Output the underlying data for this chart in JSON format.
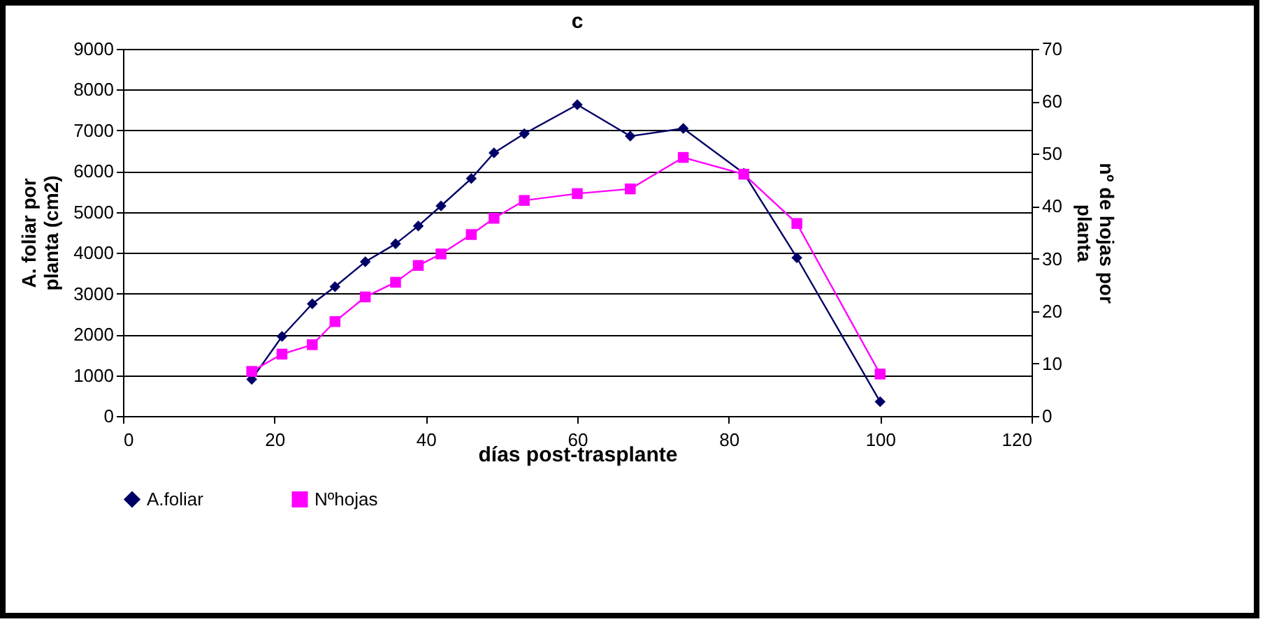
{
  "chart_data": {
    "type": "line",
    "title": "c",
    "xlabel": "días post-trasplante",
    "ylabel": "A. foliar por planta (cm2)",
    "y2label": "nº de hojas por planta",
    "x": [
      17,
      21,
      25,
      28,
      32,
      36,
      39,
      42,
      46,
      49,
      53,
      60,
      67,
      74,
      82,
      89,
      100
    ],
    "series": [
      {
        "name": "A.foliar",
        "color": "#000066",
        "marker": "diamond",
        "values": [
          900,
          1950,
          2750,
          3170,
          3780,
          4220,
          4660,
          5150,
          5820,
          6450,
          6920,
          7630,
          6860,
          7050,
          5950,
          3880,
          350
        ]
      },
      {
        "name": "Nºhojas",
        "color": "#ff00ff",
        "marker": "square",
        "axis": "y2",
        "values": [
          8.5,
          11.8,
          13.6,
          18,
          22.7,
          25.5,
          28.7,
          30.9,
          34.6,
          37.7,
          41.1,
          42.4,
          43.3,
          49.3,
          46.1,
          36.7,
          8
        ]
      }
    ],
    "xlim": [
      0,
      120
    ],
    "xticks": [
      0,
      20,
      40,
      60,
      80,
      100,
      120
    ],
    "ylim": [
      0,
      9000
    ],
    "yticks": [
      0,
      1000,
      2000,
      3000,
      4000,
      5000,
      6000,
      7000,
      8000,
      9000
    ],
    "y2lim": [
      0,
      70
    ],
    "y2ticks": [
      0,
      10,
      20,
      30,
      40,
      50,
      60,
      70
    ],
    "grid": "y",
    "legend": "bottom",
    "line_style": "solid"
  }
}
